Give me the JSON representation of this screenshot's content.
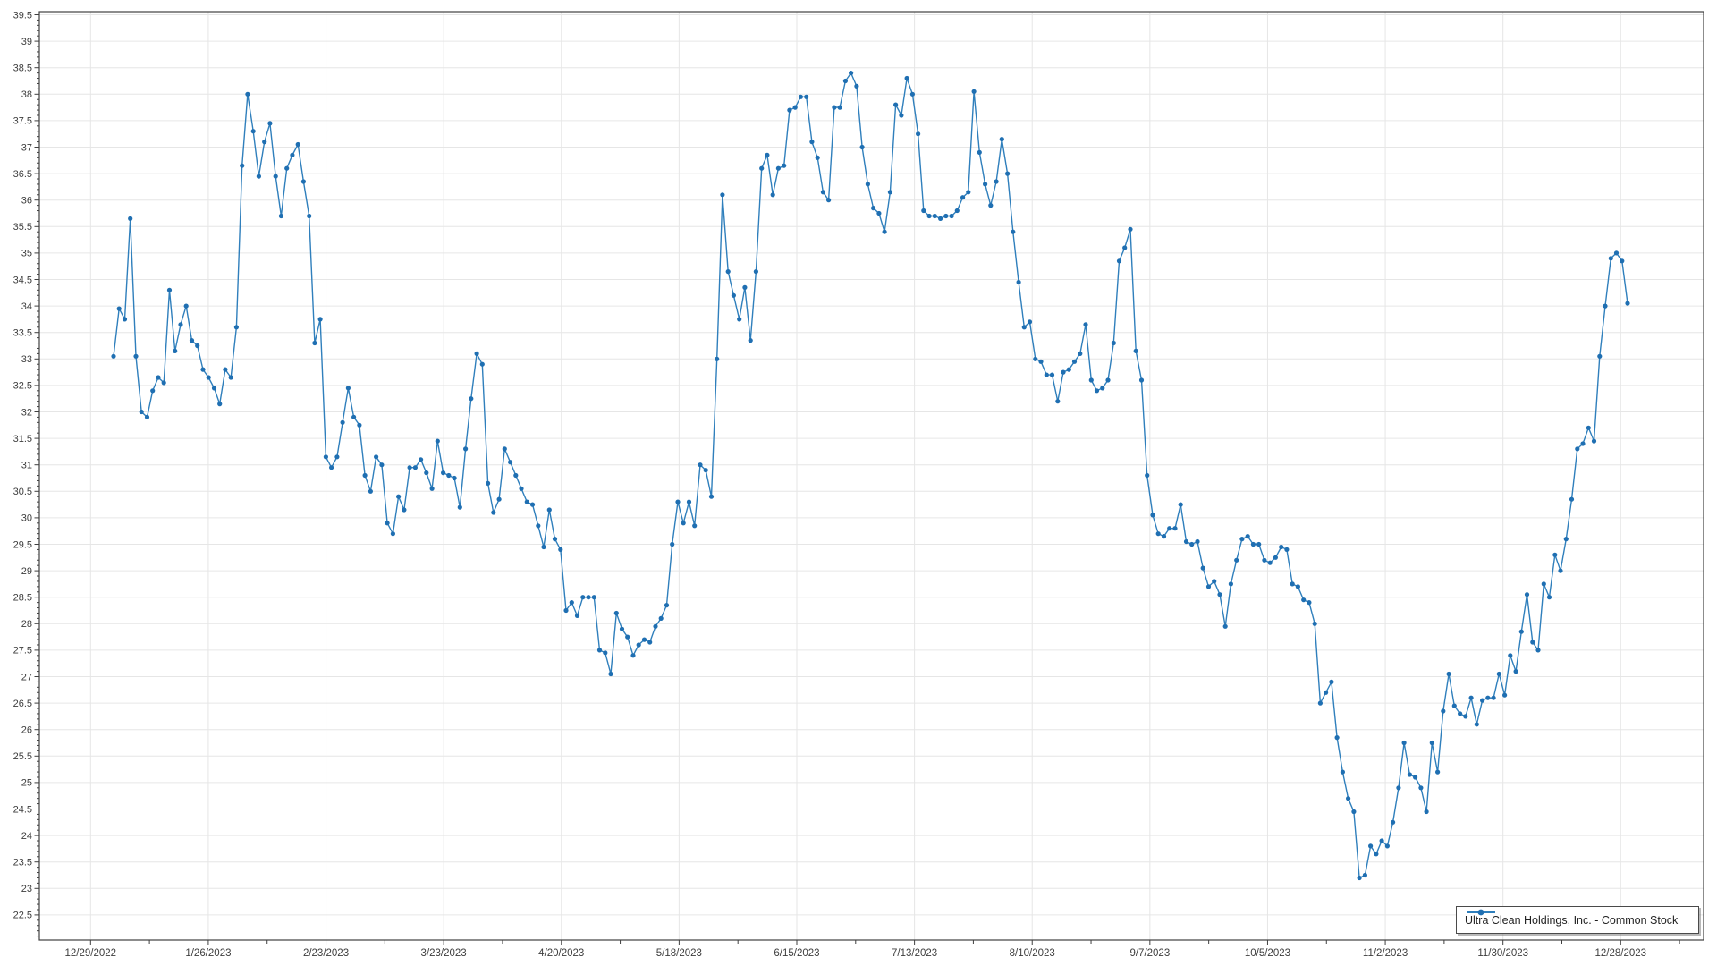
{
  "page": {
    "background": "#ffffff",
    "title": ""
  },
  "colors": {
    "grid": "#e6e6e6",
    "axis": "#3f3f3f",
    "tick": "#3f3f3f",
    "label": "#3d3d3d",
    "line": "#2f7fbc",
    "marker": "#1f6fb2",
    "background": "#ffffff"
  },
  "legend": {
    "label": "Ultra Clean Holdings, Inc. - Common Stock",
    "position": "bottom-right"
  },
  "chart_data": {
    "type": "line",
    "title": "",
    "xlabel": "",
    "ylabel": "",
    "grid": true,
    "legend_position": "bottom-right",
    "x_axis": {
      "tick_labels": [
        "12/29/2022",
        "1/26/2023",
        "2/23/2023",
        "3/23/2023",
        "4/20/2023",
        "5/18/2023",
        "6/15/2023",
        "7/13/2023",
        "8/10/2023",
        "9/7/2023",
        "10/5/2023",
        "11/2/2023",
        "11/30/2023",
        "12/28/2023"
      ],
      "grid": true
    },
    "y_axis": {
      "min": 22.5,
      "max": 39.5,
      "tick_step": 0.5,
      "minor_tick_step": 0.1,
      "tick_labels": [
        "39.5",
        "39",
        "38.5",
        "38",
        "37.5",
        "37",
        "36.5",
        "36",
        "35.5",
        "35",
        "34.5",
        "34",
        "33.5",
        "33",
        "32.5",
        "32",
        "31.5",
        "31",
        "30.5",
        "30",
        "29.5",
        "29",
        "28.5",
        "28",
        "27.5",
        "27",
        "26.5",
        "26",
        "25.5",
        "25",
        "24.5",
        "24",
        "23.5",
        "23",
        "22.5"
      ],
      "grid": true
    },
    "series": [
      {
        "name": "Ultra Clean Holdings, Inc. - Common Stock",
        "color": "#2f7fbc",
        "marker_color": "#1f6fb2",
        "marker": "circle",
        "values": [
          33.05,
          33.95,
          33.75,
          35.65,
          33.05,
          32.0,
          31.9,
          32.4,
          32.65,
          32.55,
          34.3,
          33.15,
          33.65,
          34.0,
          33.35,
          33.25,
          32.8,
          32.65,
          32.45,
          32.15,
          32.8,
          32.65,
          33.6,
          36.65,
          38.0,
          37.3,
          36.45,
          37.1,
          37.45,
          36.45,
          35.7,
          36.6,
          36.85,
          37.05,
          36.35,
          35.7,
          33.3,
          33.75,
          31.15,
          30.95,
          31.15,
          31.8,
          32.45,
          31.9,
          31.75,
          30.8,
          30.5,
          31.15,
          31.0,
          29.9,
          29.7,
          30.4,
          30.15,
          30.95,
          30.95,
          31.1,
          30.85,
          30.55,
          31.45,
          30.85,
          30.8,
          30.75,
          30.2,
          31.3,
          32.25,
          33.1,
          32.9,
          30.65,
          30.1,
          30.35,
          31.3,
          31.05,
          30.8,
          30.55,
          30.3,
          30.25,
          29.85,
          29.45,
          30.15,
          29.6,
          29.4,
          28.25,
          28.4,
          28.15,
          28.5,
          28.5,
          28.5,
          27.5,
          27.45,
          27.05,
          28.2,
          27.9,
          27.75,
          27.4,
          27.6,
          27.7,
          27.65,
          27.95,
          28.1,
          28.35,
          29.5,
          30.3,
          29.9,
          30.3,
          29.85,
          31.0,
          30.9,
          30.4,
          33.0,
          36.1,
          34.65,
          34.2,
          33.75,
          34.35,
          33.35,
          34.65,
          36.6,
          36.85,
          36.1,
          36.6,
          36.65,
          37.7,
          37.75,
          37.95,
          37.95,
          37.1,
          36.8,
          36.15,
          36.0,
          37.75,
          37.75,
          38.25,
          38.4,
          38.15,
          37.0,
          36.3,
          35.85,
          35.75,
          35.4,
          36.15,
          37.8,
          37.6,
          38.3,
          38.0,
          37.25,
          35.8,
          35.7,
          35.7,
          35.65,
          35.7,
          35.7,
          35.8,
          36.05,
          36.15,
          38.05,
          36.9,
          36.3,
          35.9,
          36.35,
          37.15,
          36.5,
          35.4,
          34.45,
          33.6,
          33.7,
          33.0,
          32.95,
          32.7,
          32.7,
          32.2,
          32.75,
          32.8,
          32.95,
          33.1,
          33.65,
          32.6,
          32.4,
          32.45,
          32.6,
          33.3,
          34.85,
          35.1,
          35.45,
          33.15,
          32.6,
          30.8,
          30.05,
          29.7,
          29.65,
          29.8,
          29.8,
          30.25,
          29.55,
          29.5,
          29.55,
          29.05,
          28.7,
          28.8,
          28.55,
          27.95,
          28.75,
          29.2,
          29.6,
          29.65,
          29.5,
          29.5,
          29.2,
          29.15,
          29.25,
          29.45,
          29.4,
          28.75,
          28.7,
          28.45,
          28.4,
          28.0,
          26.5,
          26.7,
          26.9,
          25.85,
          25.2,
          24.7,
          24.45,
          23.2,
          23.25,
          23.8,
          23.65,
          23.9,
          23.8,
          24.25,
          24.9,
          25.75,
          25.15,
          25.1,
          24.9,
          24.45,
          25.75,
          25.2,
          26.35,
          27.05,
          26.45,
          26.3,
          26.25,
          26.6,
          26.1,
          26.55,
          26.6,
          26.6,
          27.05,
          26.65,
          27.4,
          27.1,
          27.85,
          28.55,
          27.65,
          27.5,
          28.75,
          28.5,
          29.3,
          29.0,
          29.6,
          30.35,
          31.3,
          31.4,
          31.7,
          31.45,
          33.05,
          34.0,
          34.9,
          35.0,
          34.85,
          34.05
        ]
      }
    ]
  }
}
